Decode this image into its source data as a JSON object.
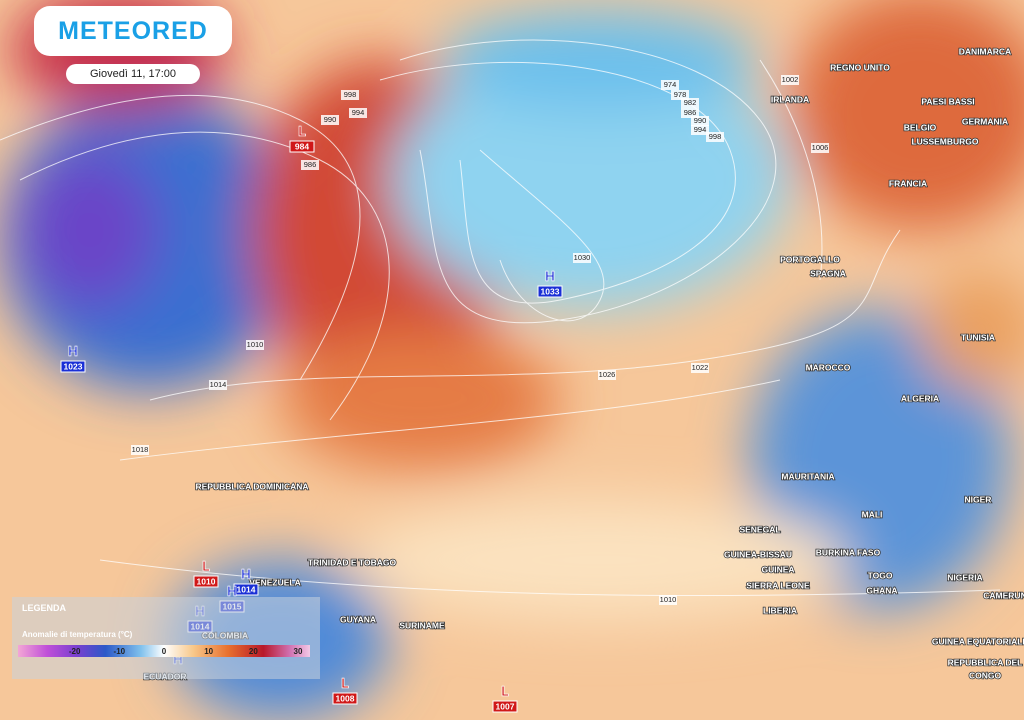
{
  "header": {
    "brand": "METEORED",
    "timestamp": "Giovedì 11, 17:00"
  },
  "pressure_centers": [
    {
      "type": "L",
      "value": 984
    },
    {
      "type": "H",
      "value": 1033
    },
    {
      "type": "H",
      "value": 1023
    },
    {
      "type": "L",
      "value": 1010
    },
    {
      "type": "H",
      "value": 1014
    },
    {
      "type": "H",
      "value": 1015
    },
    {
      "type": "H",
      "value": 1014
    },
    {
      "type": "H"
    },
    {
      "type": "L",
      "value": 1008
    },
    {
      "type": "L",
      "value": 1007
    }
  ],
  "isobar_labels": [
    974,
    978,
    982,
    986,
    990,
    994,
    998,
    998,
    994,
    990,
    986,
    1002,
    1006,
    1030,
    1026,
    1022,
    1010,
    1014,
    1010,
    1018
  ],
  "places": [
    "REGNO UNITO",
    "IRLANDA",
    "DANIMARCA",
    "PAESI BASSI",
    "BELGIO",
    "GERMANIA",
    "LUSSEMBURGO",
    "FRANCIA",
    "PORTOGALLO",
    "SPAGNA",
    "MAROCCO",
    "ALGERIA",
    "TUNISIA",
    "MAURITANIA",
    "MALI",
    "NIGER",
    "SENEGAL",
    "GUINEA-BISSAU",
    "GUINEA",
    "SIERRA LEONE",
    "LIBERIA",
    "BURKINA FASO",
    "GHANA",
    "TOGO",
    "NIGERIA",
    "CAMERUN",
    "GUINEA EQUATORIALE",
    "REPUBBLICA DEL",
    "CONGO",
    "VENEZUELA",
    "COLOMBIA",
    "GUYANA",
    "SURINAME",
    "ECUADOR",
    "REPUBBLICA DOMINICANA",
    "TRINIDAD E TOBAGO"
  ],
  "legend": {
    "title": "LEGENDA",
    "subtitle": "Anomalie di temperatura (°C)",
    "ticks": [
      -20,
      -10,
      0,
      10,
      20,
      30
    ]
  }
}
